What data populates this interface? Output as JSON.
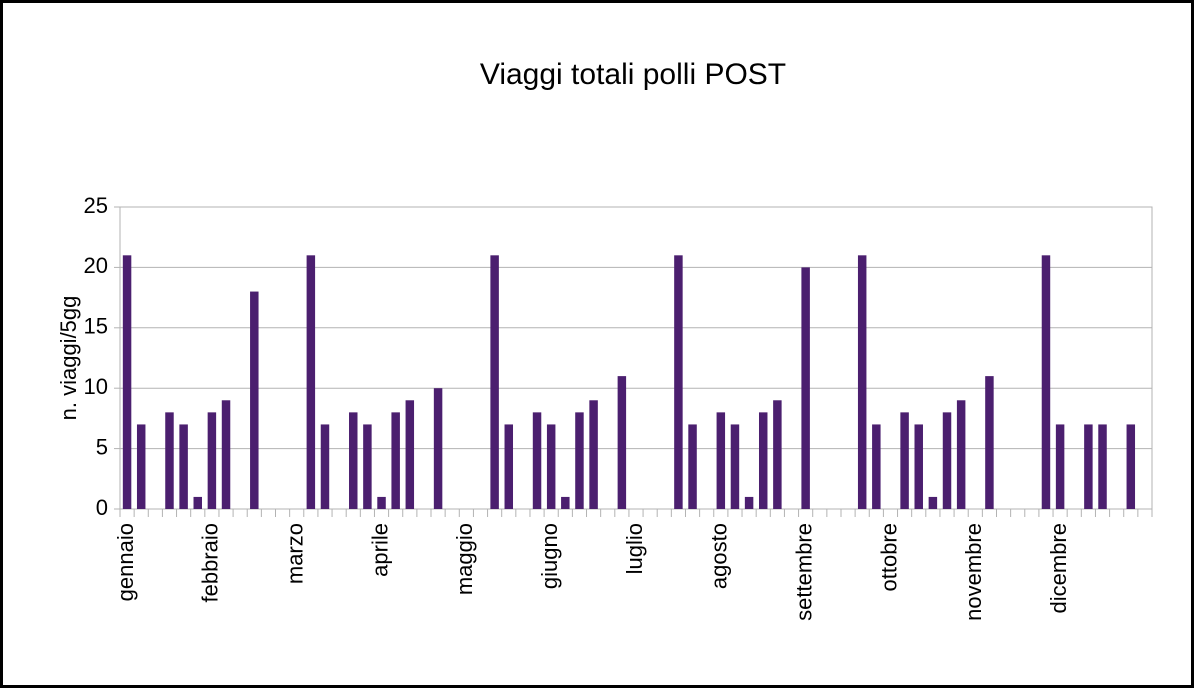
{
  "chart_data": {
    "type": "bar",
    "title": "Viaggi totali polli POST",
    "y_label": "n. viaggi/5gg",
    "categories": [
      "gennaio",
      null,
      null,
      null,
      null,
      null,
      "febbraio",
      null,
      null,
      null,
      null,
      null,
      "marzo",
      null,
      null,
      null,
      null,
      null,
      "aprile",
      null,
      null,
      null,
      null,
      null,
      "maggio",
      null,
      null,
      null,
      null,
      null,
      "giugno",
      null,
      null,
      null,
      null,
      null,
      "luglio",
      null,
      null,
      null,
      null,
      null,
      "agosto",
      null,
      null,
      null,
      null,
      null,
      "settembre",
      null,
      null,
      null,
      null,
      null,
      "ottobre",
      null,
      null,
      null,
      null,
      null,
      "novembre",
      null,
      null,
      null,
      null,
      null,
      "dicembre",
      null,
      null,
      null,
      null,
      null,
      null
    ],
    "values": [
      21,
      7,
      null,
      8,
      7,
      1,
      8,
      9,
      null,
      18,
      null,
      null,
      null,
      21,
      7,
      null,
      8,
      7,
      1,
      8,
      9,
      null,
      10,
      null,
      null,
      null,
      21,
      7,
      null,
      8,
      7,
      1,
      8,
      9,
      null,
      11,
      null,
      null,
      null,
      21,
      7,
      null,
      8,
      7,
      1,
      8,
      9,
      null,
      20,
      null,
      null,
      null,
      21,
      7,
      null,
      8,
      7,
      1,
      8,
      9,
      null,
      11,
      null,
      null,
      null,
      21,
      7,
      null,
      7,
      7,
      null,
      7,
      null
    ],
    "color": "#4b1f6f",
    "ylim": [
      0,
      25
    ],
    "yticks": [
      0,
      5,
      10,
      15,
      20,
      25
    ],
    "grid": true
  }
}
